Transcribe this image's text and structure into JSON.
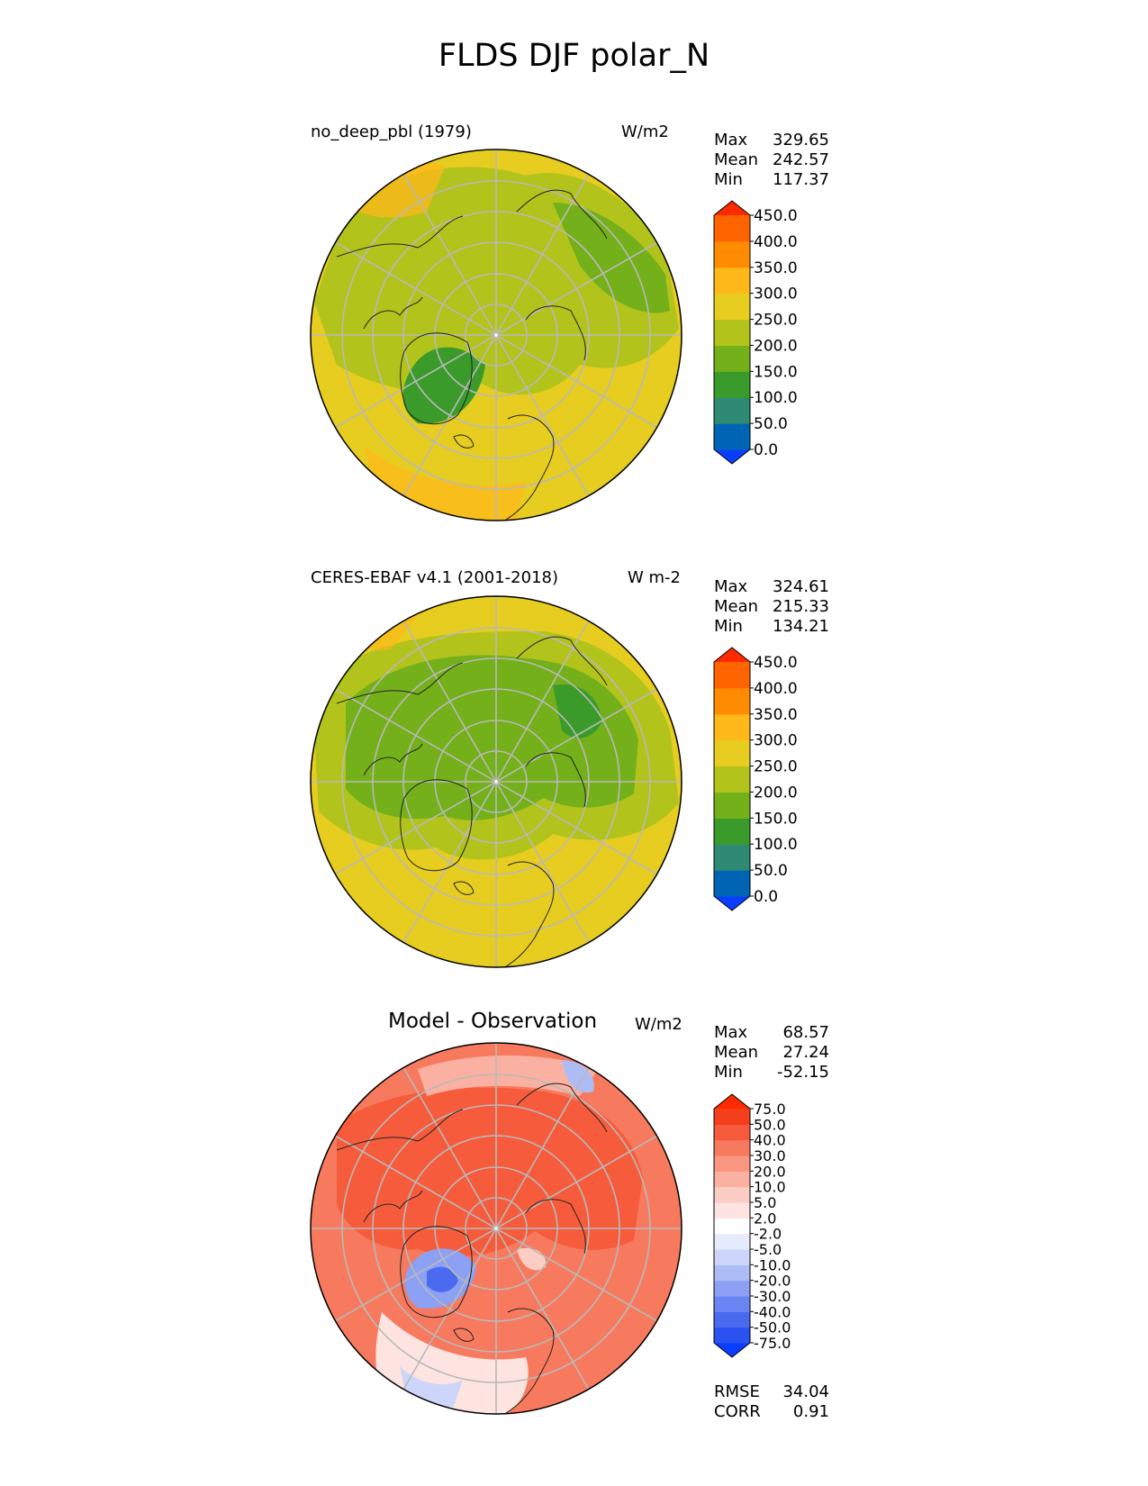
{
  "title": "FLDS DJF polar_N",
  "panels": [
    {
      "label": "no_deep_pbl (1979)",
      "units": "W/m2",
      "stats": {
        "max_label": "Max",
        "max": "329.65",
        "mean_label": "Mean",
        "mean": "242.57",
        "min_label": "Min",
        "min": "117.37"
      },
      "colorbar": {
        "ticks": [
          "0.0",
          "50.0",
          "100.0",
          "150.0",
          "200.0",
          "250.0",
          "300.0",
          "350.0",
          "400.0",
          "450.0"
        ],
        "colors": [
          "#0a3dff",
          "#0064b4",
          "#2e8a72",
          "#3a9b2a",
          "#74b01a",
          "#b2c31c",
          "#e6cd20",
          "#ffb81a",
          "#ff8c00",
          "#ff6400",
          "#ff2a00"
        ]
      }
    },
    {
      "label": "CERES-EBAF v4.1 (2001-2018)",
      "units": "W m-2",
      "stats": {
        "max_label": "Max",
        "max": "324.61",
        "mean_label": "Mean",
        "mean": "215.33",
        "min_label": "Min",
        "min": "134.21"
      },
      "colorbar": {
        "ticks": [
          "0.0",
          "50.0",
          "100.0",
          "150.0",
          "200.0",
          "250.0",
          "300.0",
          "350.0",
          "400.0",
          "450.0"
        ],
        "colors": [
          "#0a3dff",
          "#0064b4",
          "#2e8a72",
          "#3a9b2a",
          "#74b01a",
          "#b2c31c",
          "#e6cd20",
          "#ffb81a",
          "#ff8c00",
          "#ff6400",
          "#ff2a00"
        ]
      }
    },
    {
      "title": "Model - Observation",
      "units": "W/m2",
      "stats": {
        "max_label": "Max",
        "max": "68.57",
        "mean_label": "Mean",
        "mean": "27.24",
        "min_label": "Min",
        "min": "-52.15"
      },
      "colorbar": {
        "ticks": [
          "-75.0",
          "-50.0",
          "-40.0",
          "-30.0",
          "-20.0",
          "-10.0",
          "-5.0",
          "-2.0",
          "2.0",
          "5.0",
          "10.0",
          "20.0",
          "30.0",
          "40.0",
          "50.0",
          "75.0"
        ],
        "colors": [
          "#0a3dff",
          "#2a52f0",
          "#4a6af0",
          "#6a84f2",
          "#8ca0f4",
          "#aebcf6",
          "#cdd6fa",
          "#e6ebfc",
          "#ffffff",
          "#fde4e0",
          "#fbcdc4",
          "#fbb1a2",
          "#fa9580",
          "#f87a5e",
          "#f65c3c",
          "#f43e1c",
          "#ff2a00"
        ]
      },
      "metrics": {
        "rmse_label": "RMSE",
        "rmse": "34.04",
        "corr_label": "CORR",
        "corr": "0.91"
      }
    }
  ]
}
